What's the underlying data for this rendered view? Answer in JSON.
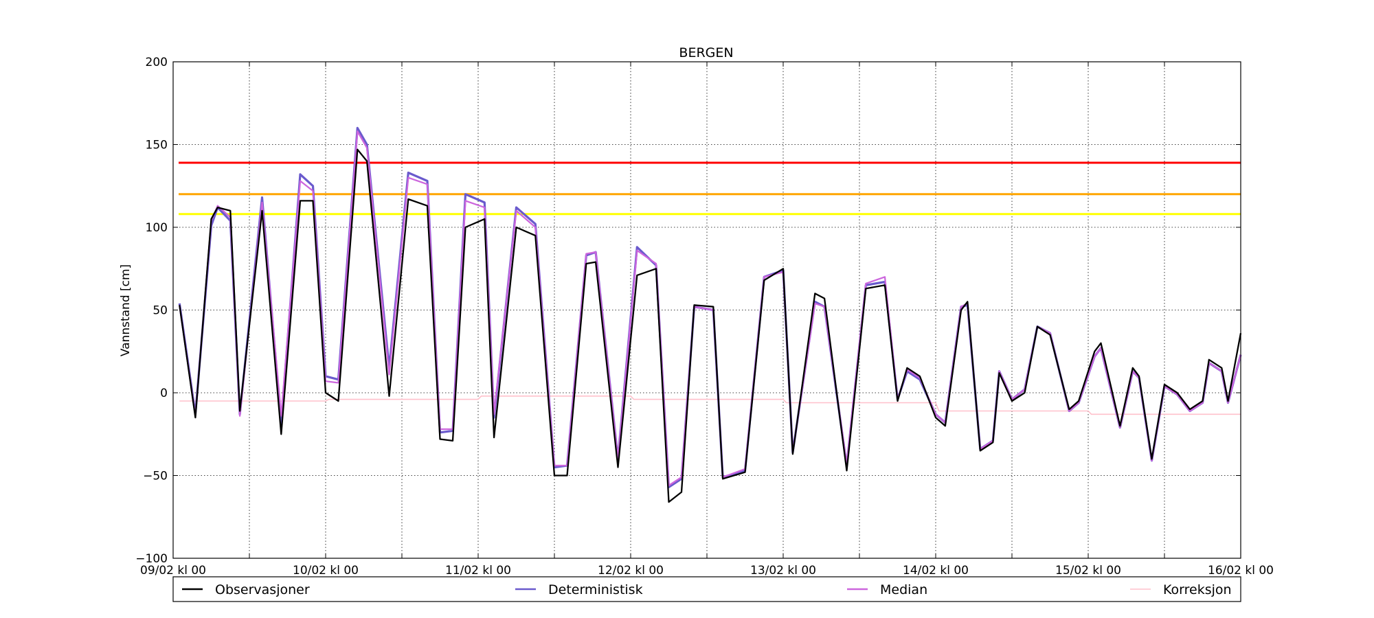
{
  "chart_data": {
    "type": "line",
    "title": "BERGEN",
    "ylabel": "Vannstand [cm]",
    "xlabel": "",
    "ylim": [
      -100,
      200
    ],
    "yticks": [
      -100,
      -50,
      0,
      50,
      100,
      150,
      200
    ],
    "ytick_labels": [
      "−100",
      "−50",
      "0",
      "50",
      "100",
      "150",
      "200"
    ],
    "xlim": [
      0,
      168
    ],
    "xticks": [
      0,
      24,
      48,
      72,
      96,
      120,
      144,
      168
    ],
    "xtick_labels": [
      "09/02 kl 00",
      "10/02 kl 00",
      "11/02 kl 00",
      "12/02 kl 00",
      "13/02 kl 00",
      "14/02 kl 00",
      "15/02 kl 00",
      "16/02 kl 00"
    ],
    "minor_xgrid": [
      12,
      36,
      60,
      84,
      108,
      132,
      156
    ],
    "grid": true,
    "legend_position": "below",
    "thresholds": [
      {
        "value": 139,
        "color": "#ff0000"
      },
      {
        "value": 120,
        "color": "#ffa500"
      },
      {
        "value": 108,
        "color": "#ffff00"
      }
    ],
    "series": [
      {
        "name": "Observasjoner",
        "color": "#000000",
        "x": [
          1,
          3.5,
          6,
          7,
          9,
          10.5,
          14,
          17,
          20,
          22,
          24,
          26,
          29,
          30.5,
          34,
          37,
          40,
          42,
          44,
          46,
          49,
          50.5,
          54,
          57,
          60,
          62,
          65,
          66.5,
          70,
          73,
          76,
          78,
          80,
          82,
          85,
          86.5,
          90,
          93,
          96,
          97.5,
          101,
          102.5,
          106,
          109,
          112,
          114,
          115.5,
          117.5,
          120,
          121.5,
          124,
          125,
          127,
          129,
          130,
          132,
          134,
          136,
          138,
          141,
          142.5,
          145,
          146,
          149,
          151,
          152,
          154,
          156,
          158,
          160,
          162,
          163,
          165,
          166,
          168
        ],
        "y": [
          53,
          -15,
          105,
          112,
          110,
          -11,
          110,
          -25,
          116,
          116,
          0,
          -5,
          147,
          140,
          -2,
          117,
          113,
          -28,
          -29,
          100,
          105,
          -27,
          100,
          95,
          -50,
          -50,
          78,
          79,
          -45,
          71,
          75,
          -66,
          -60,
          53,
          52,
          -52,
          -48,
          68,
          75,
          -37,
          60,
          57,
          -47,
          63,
          65,
          -5,
          15,
          10,
          -15,
          -20,
          50,
          55,
          -35,
          -30,
          12,
          -5,
          0,
          40,
          35,
          -10,
          -5,
          25,
          30,
          -20,
          15,
          10,
          -40,
          5,
          0,
          -10,
          -5,
          20,
          15,
          -5,
          36
        ]
      },
      {
        "name": "Deterministisk",
        "color": "#6a5acd",
        "x": [
          1,
          3.5,
          6,
          7,
          9,
          10.5,
          14,
          17,
          20,
          22,
          24,
          26,
          29,
          30.5,
          34,
          37,
          40,
          42,
          44,
          46,
          49,
          50.5,
          54,
          57,
          60,
          62,
          65,
          66.5,
          70,
          73,
          76,
          78,
          80,
          82,
          85,
          86.5,
          90,
          93,
          96,
          97.5,
          101,
          102.5,
          106,
          109,
          112,
          114,
          115.5,
          117.5,
          120,
          121.5,
          124,
          125,
          127,
          129,
          130,
          132,
          134,
          136,
          138,
          141,
          142.5,
          145,
          146,
          149,
          151,
          152,
          154,
          156,
          158,
          160,
          162,
          163,
          165,
          166,
          168
        ],
        "y": [
          54,
          -13,
          101,
          112,
          104,
          -13,
          118,
          -19,
          132,
          125,
          10,
          8,
          160,
          150,
          15,
          133,
          128,
          -24,
          -23,
          120,
          115,
          -15,
          112,
          102,
          -45,
          -44,
          83,
          85,
          -40,
          88,
          77,
          -57,
          -52,
          52,
          50,
          -51,
          -47,
          70,
          74,
          -36,
          55,
          52,
          -44,
          65,
          67,
          -4,
          13,
          8,
          -13,
          -18,
          52,
          53,
          -34,
          -29,
          13,
          -4,
          2,
          40,
          36,
          -11,
          -6,
          22,
          27,
          -21,
          13,
          9,
          -41,
          4,
          -1,
          -11,
          -6,
          18,
          13,
          -6,
          23
        ]
      },
      {
        "name": "Median",
        "color": "#cc66dd",
        "x": [
          1,
          3.5,
          6,
          7,
          9,
          10.5,
          14,
          17,
          20,
          22,
          24,
          26,
          29,
          30.5,
          34,
          37,
          40,
          42,
          44,
          46,
          49,
          50.5,
          54,
          57,
          60,
          62,
          65,
          66.5,
          70,
          73,
          76,
          78,
          80,
          82,
          85,
          86.5,
          90,
          93,
          96,
          97.5,
          101,
          102.5,
          106,
          109,
          112,
          114,
          115.5,
          117.5,
          120,
          121.5,
          124,
          125,
          127,
          129,
          130,
          132,
          134,
          136,
          138,
          141,
          142.5,
          145,
          146,
          149,
          151,
          152,
          154,
          156,
          158,
          160,
          162,
          163,
          165,
          166,
          168
        ],
        "y": [
          53,
          -14,
          104,
          113,
          106,
          -14,
          115,
          -14,
          128,
          122,
          7,
          6,
          158,
          148,
          11,
          130,
          126,
          -22,
          -22,
          116,
          112,
          -13,
          110,
          100,
          -44,
          -44,
          84,
          85,
          -40,
          86,
          78,
          -56,
          -51,
          52,
          50,
          -51,
          -46,
          70,
          73,
          -36,
          54,
          52,
          -43,
          66,
          70,
          -4,
          14,
          9,
          -13,
          -18,
          52,
          54,
          -34,
          -29,
          13,
          -4,
          2,
          40,
          36,
          -11,
          -6,
          22,
          27,
          -21,
          13,
          9,
          -41,
          4,
          -1,
          -11,
          -6,
          18,
          13,
          -6,
          23
        ]
      },
      {
        "name": "Korreksjon",
        "color": "#ffc0cb",
        "x": [
          1,
          24,
          24.5,
          48,
          48.5,
          72,
          72.5,
          96,
          96.5,
          120,
          120.5,
          144,
          144.5,
          168
        ],
        "y": [
          -5,
          -5,
          -4,
          -4,
          -2,
          -2,
          -4,
          -4,
          -6,
          -6,
          -11,
          -11,
          -13,
          -13
        ]
      }
    ]
  }
}
